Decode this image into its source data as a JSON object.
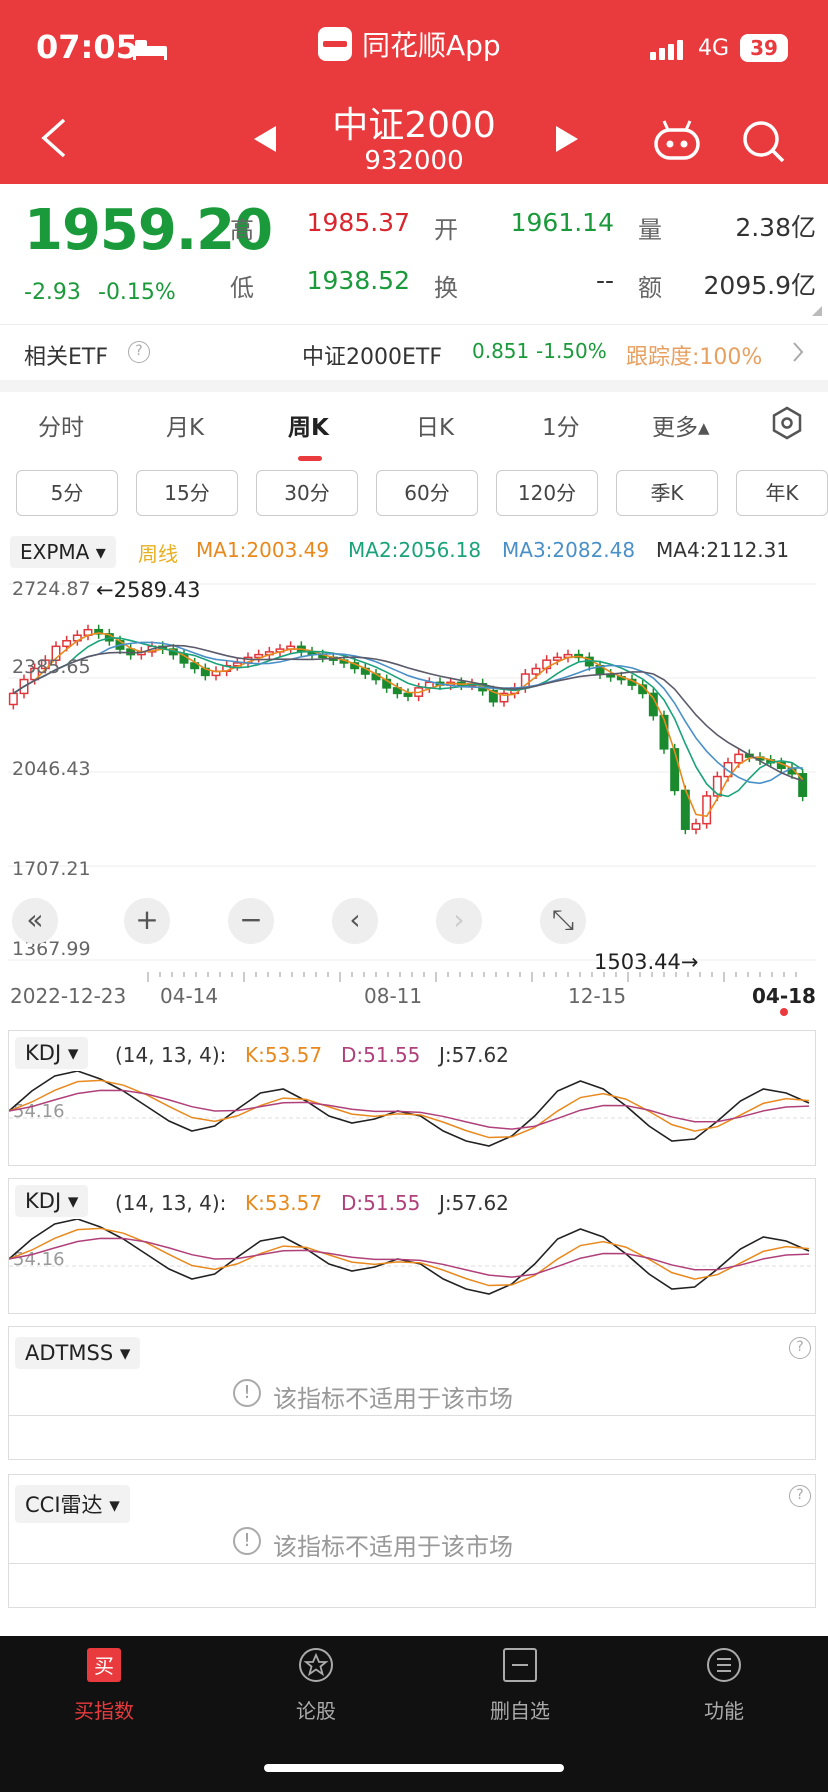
{
  "status": {
    "time": "07:05",
    "network": "4G",
    "battery": "39"
  },
  "app": {
    "name": "同花顺App"
  },
  "header": {
    "title": "中证2000",
    "code": "932000"
  },
  "quote": {
    "price": "1959.20",
    "change": "-2.93",
    "change_pct": "-0.15%",
    "high_label": "高",
    "high": "1985.37",
    "open_label": "开",
    "open": "1961.14",
    "vol_label": "量",
    "vol": "2.38亿",
    "low_label": "低",
    "low": "1938.52",
    "turn_label": "换",
    "turn": "--",
    "amt_label": "额",
    "amt": "2095.9亿"
  },
  "etf": {
    "label": "相关ETF",
    "name": "中证2000ETF",
    "price": "0.851",
    "pct": "-1.50%",
    "track": "跟踪度:100%"
  },
  "tabs": [
    {
      "label": "分时"
    },
    {
      "label": "月K"
    },
    {
      "label": "周K"
    },
    {
      "label": "日K"
    },
    {
      "label": "1分"
    },
    {
      "label": "更多▴"
    }
  ],
  "pills": [
    {
      "label": "5分"
    },
    {
      "label": "15分"
    },
    {
      "label": "30分"
    },
    {
      "label": "60分"
    },
    {
      "label": "120分"
    },
    {
      "label": "季K"
    },
    {
      "label": "年K"
    }
  ],
  "main_chart": {
    "indicator": "EXPMA",
    "line_label": "周线",
    "ma1": "MA1:2003.49",
    "ma2": "MA2:2056.18",
    "ma3": "MA3:2082.48",
    "ma4": "MA4:2112.31",
    "y_labels": [
      "2724.87",
      "2385.65",
      "2046.43",
      "1707.21",
      "1367.99"
    ],
    "max_note": "←2589.43",
    "min_note": "1503.44→",
    "x_labels": [
      "2022-12-23",
      "04-14",
      "08-11",
      "12-15",
      "04-18"
    ],
    "colors": {
      "up": "#e0363b",
      "down": "#1b8a2e",
      "ma1": "#e8891e",
      "ma2": "#1aa37a",
      "ma3": "#4a90c8",
      "ma4": "#5a5a6a"
    }
  },
  "chart_data": {
    "type": "candlestick",
    "title": "中证2000 周K",
    "ylim": [
      1367.99,
      2724.87
    ],
    "x_range": [
      "2022-12-23",
      "04-18"
    ],
    "max_high": 2589.43,
    "min_low": 1503.44,
    "last_close": 1959.2,
    "ma": {
      "MA1": 2003.49,
      "MA2": 2056.18,
      "MA3": 2082.48,
      "MA4": 2112.31
    },
    "closes": [
      2330,
      2380,
      2420,
      2450,
      2500,
      2520,
      2540,
      2560,
      2545,
      2520,
      2490,
      2470,
      2480,
      2500,
      2490,
      2470,
      2440,
      2420,
      2395,
      2410,
      2430,
      2440,
      2460,
      2470,
      2480,
      2490,
      2500,
      2480,
      2470,
      2460,
      2450,
      2440,
      2420,
      2400,
      2380,
      2350,
      2330,
      2320,
      2350,
      2370,
      2360,
      2370,
      2360,
      2365,
      2340,
      2300,
      2330,
      2350,
      2400,
      2420,
      2450,
      2460,
      2470,
      2460,
      2430,
      2400,
      2390,
      2380,
      2360,
      2330,
      2250,
      2130,
      1980,
      1840,
      1860,
      1960,
      2030,
      2080,
      2110,
      2100,
      2090,
      2080,
      2060,
      2040,
      1959
    ]
  },
  "kdj": {
    "label": "KDJ",
    "params": "(14, 13, 4):",
    "k": "K:53.57",
    "d": "D:51.55",
    "j": "J:57.62",
    "level": "54.16"
  },
  "adtmss": {
    "label": "ADTMSS",
    "msg": "该指标不适用于该市场"
  },
  "cci": {
    "label": "CCI雷达",
    "msg": "该指标不适用于该市场"
  },
  "nav": [
    {
      "label": "买指数"
    },
    {
      "label": "论股"
    },
    {
      "label": "删自选"
    },
    {
      "label": "功能"
    }
  ]
}
